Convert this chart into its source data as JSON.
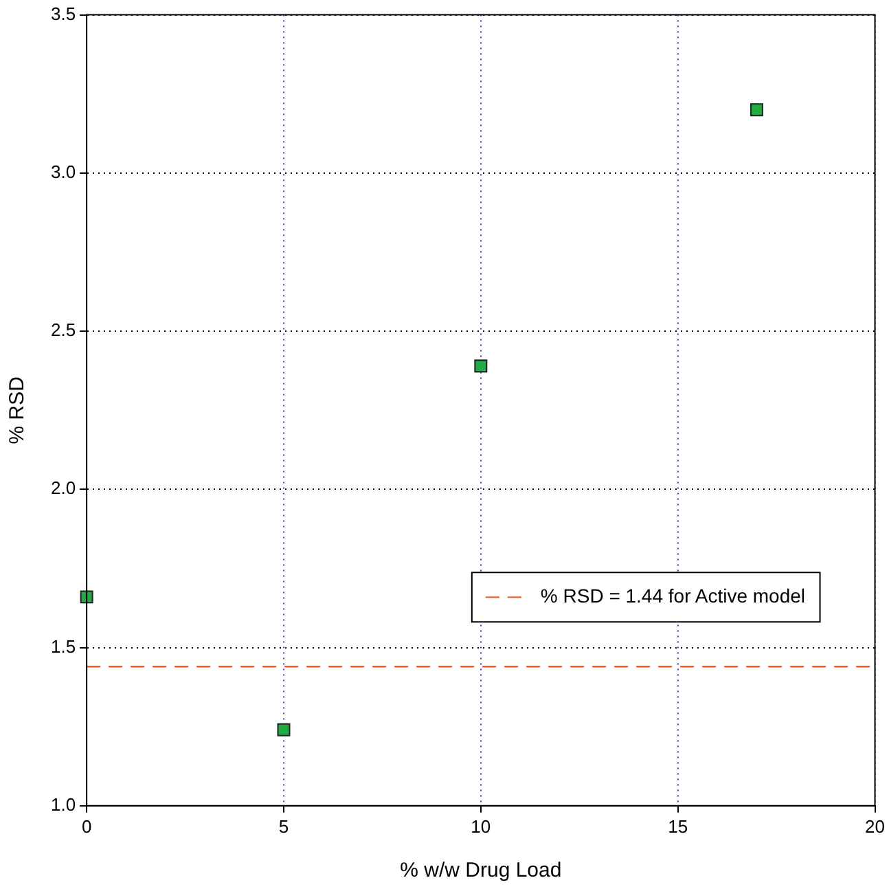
{
  "chart_data": {
    "type": "scatter",
    "xlabel": "% w/w Drug Load",
    "ylabel": "% RSD",
    "x": [
      0,
      5,
      10,
      17
    ],
    "series": [
      {
        "color": "#22aa44",
        "values": [
          1.66,
          1.24,
          2.39,
          3.2
        ]
      }
    ],
    "marker": "square",
    "xlim": [
      0,
      20
    ],
    "xticks": [
      0,
      5,
      10,
      15,
      20
    ],
    "ylim": [
      1.0,
      3.5
    ],
    "yticks": [
      {
        "value": 1.0,
        "label": "1.0"
      },
      {
        "value": 1.5,
        "label": "1.5"
      },
      {
        "value": 2.0,
        "label": "2.0"
      },
      {
        "value": 2.5,
        "label": "2.5"
      },
      {
        "value": 3.0,
        "label": "3.0"
      },
      {
        "value": 3.5,
        "label": "3.5"
      }
    ],
    "grid": true,
    "legend": "right",
    "ref_lines": [
      {
        "axis": "y",
        "value": 1.44,
        "label": "% RSD = 1.44 for Active model",
        "color": "#ff5522",
        "line_style": "dashed"
      }
    ]
  }
}
